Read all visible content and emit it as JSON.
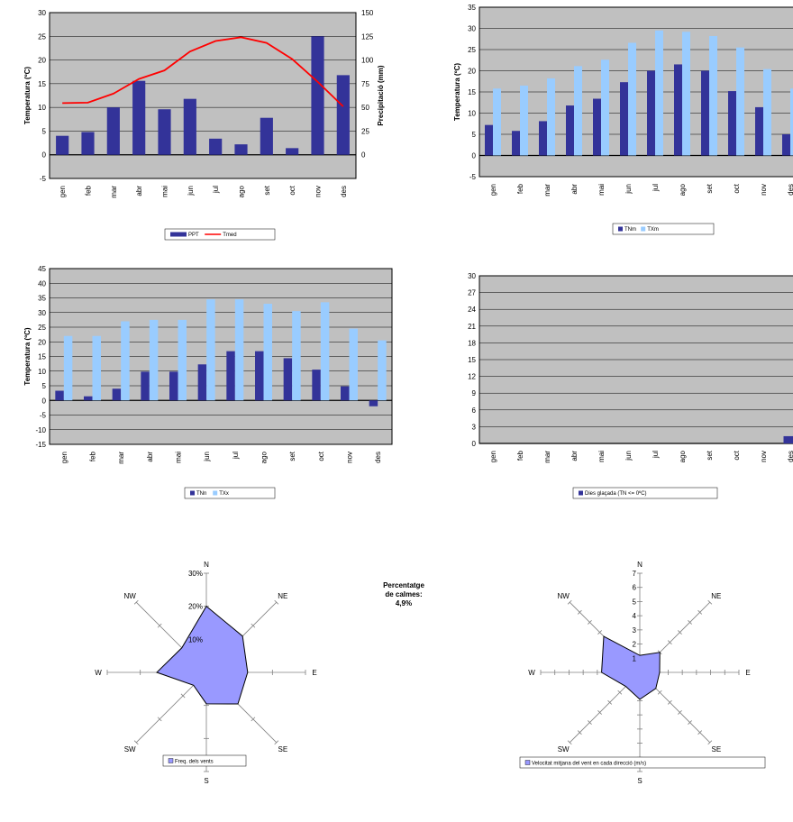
{
  "colors": {
    "dark": "#333399",
    "light": "#99ccff",
    "red": "#ff0000",
    "plot": "#c0c0c0",
    "rose": "#9999ff"
  },
  "months": [
    "gen",
    "feb",
    "mar",
    "abr",
    "mai",
    "jun",
    "jul",
    "ago",
    "set",
    "oct",
    "nov",
    "des"
  ],
  "calms": {
    "line1": "Percentatge",
    "line2": "de calmes:",
    "value": "4,9%"
  },
  "chart_data": [
    {
      "type": "bar",
      "id": "climogram",
      "categories": [
        "gen",
        "feb",
        "mar",
        "abr",
        "mai",
        "jun",
        "jul",
        "ago",
        "set",
        "oct",
        "nov",
        "des"
      ],
      "ylabel": "Temperatura (ºC)",
      "y2label": "Precipitació (mm)",
      "ylim": [
        -5,
        30
      ],
      "y2lim": [
        -25,
        150
      ],
      "yticks": [
        -5,
        0,
        5,
        10,
        15,
        20,
        25,
        30
      ],
      "y2ticks": [
        0,
        25,
        50,
        75,
        100,
        125,
        150
      ],
      "series": [
        {
          "name": "PPT",
          "kind": "bar",
          "axis": "y2",
          "color": "#333399",
          "values": [
            20,
            24,
            50,
            78,
            48,
            59,
            17,
            11,
            39,
            7,
            125,
            84
          ]
        },
        {
          "name": "Tmed",
          "kind": "line",
          "axis": "y",
          "color": "#ff0000",
          "values": [
            10.9,
            11.0,
            12.9,
            16.0,
            17.8,
            21.8,
            24.0,
            24.8,
            23.6,
            20.2,
            15.4,
            10.2
          ]
        }
      ],
      "legend": [
        "PPT",
        "Tmed"
      ]
    },
    {
      "type": "bar",
      "id": "tmin-tmax",
      "categories": [
        "gen",
        "feb",
        "mar",
        "abr",
        "mai",
        "jun",
        "jul",
        "ago",
        "set",
        "oct",
        "nov",
        "des"
      ],
      "ylabel": "Temperatura (ºC)",
      "ylim": [
        -5,
        35
      ],
      "yticks": [
        -5,
        0,
        5,
        10,
        15,
        20,
        25,
        30,
        35
      ],
      "series": [
        {
          "name": "TNm",
          "color": "#333399",
          "values": [
            7.2,
            5.8,
            8.1,
            11.8,
            13.4,
            17.3,
            20.0,
            21.5,
            20.0,
            15.2,
            11.4,
            5.0
          ]
        },
        {
          "name": "TXm",
          "color": "#99ccff",
          "values": [
            15.8,
            16.5,
            18.2,
            21.1,
            22.6,
            26.6,
            29.5,
            29.2,
            28.2,
            25.5,
            20.4,
            15.8
          ]
        }
      ],
      "legend": [
        "TNm",
        "TXm"
      ]
    },
    {
      "type": "bar",
      "id": "tn-tx-abs",
      "categories": [
        "gen",
        "feb",
        "mar",
        "abr",
        "mai",
        "jun",
        "jul",
        "ago",
        "set",
        "oct",
        "nov",
        "des"
      ],
      "ylabel": "Temperatura (ºC)",
      "ylim": [
        -15,
        45
      ],
      "yticks": [
        -15,
        -10,
        -5,
        0,
        5,
        10,
        15,
        20,
        25,
        30,
        35,
        40,
        45
      ],
      "series": [
        {
          "name": "TNn",
          "color": "#333399",
          "values": [
            3.3,
            1.4,
            4.0,
            9.8,
            9.8,
            12.3,
            16.8,
            16.8,
            14.4,
            10.5,
            4.8,
            -2.0
          ]
        },
        {
          "name": "TXx",
          "color": "#99ccff",
          "values": [
            22.0,
            22.0,
            27.0,
            27.5,
            27.5,
            34.5,
            34.5,
            33.0,
            30.5,
            33.5,
            24.5,
            20.5
          ]
        }
      ],
      "legend": [
        "TNn",
        "TXx"
      ]
    },
    {
      "type": "bar",
      "id": "frost-days",
      "categories": [
        "gen",
        "feb",
        "mar",
        "abr",
        "mai",
        "jun",
        "jul",
        "ago",
        "set",
        "oct",
        "nov",
        "des"
      ],
      "ylim": [
        0,
        30
      ],
      "yticks": [
        0,
        3,
        6,
        9,
        12,
        15,
        18,
        21,
        24,
        27,
        30
      ],
      "series": [
        {
          "name": "Dies glaçada (TN <= 0ºC)",
          "color": "#333399",
          "values": [
            0,
            0,
            0,
            0,
            0,
            0,
            0,
            0,
            0,
            0,
            0,
            1.3
          ]
        }
      ],
      "legend": [
        "Dies glaçada (TN <= 0ºC)"
      ]
    },
    {
      "type": "radar",
      "id": "wind-frequency",
      "directions": [
        "N",
        "NE",
        "E",
        "SE",
        "S",
        "SW",
        "W",
        "NW"
      ],
      "radial_ticks": [
        "10%",
        "20%",
        "30%"
      ],
      "rmax": 30,
      "values": [
        20,
        15.5,
        12.5,
        13.5,
        9.5,
        5.5,
        15,
        10.5
      ],
      "legend": [
        "Freq. dels vents"
      ]
    },
    {
      "type": "radar",
      "id": "wind-speed",
      "directions": [
        "N",
        "NE",
        "E",
        "SE",
        "S",
        "SW",
        "W",
        "NW"
      ],
      "radial_ticks": [
        "1",
        "2",
        "3",
        "4",
        "5",
        "6",
        "7"
      ],
      "rmax": 7,
      "values": [
        1.2,
        2.0,
        1.4,
        1.6,
        1.9,
        1.4,
        2.7,
        3.6
      ],
      "legend": [
        "Velocitat mitjana del vent en cada direcció (m/s)"
      ]
    }
  ]
}
